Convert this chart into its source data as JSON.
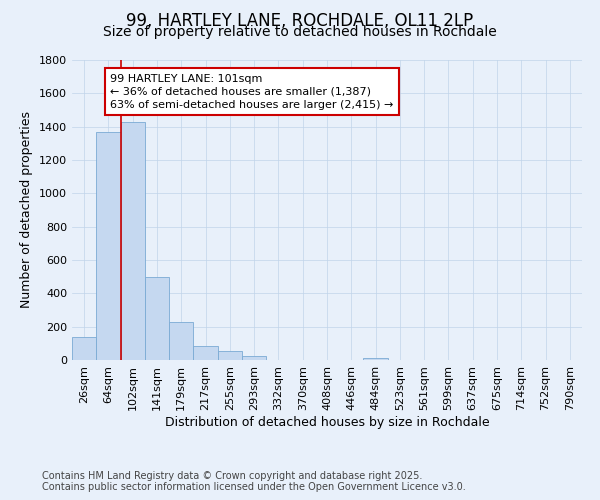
{
  "title_line1": "99, HARTLEY LANE, ROCHDALE, OL11 2LP",
  "title_line2": "Size of property relative to detached houses in Rochdale",
  "xlabel": "Distribution of detached houses by size in Rochdale",
  "ylabel": "Number of detached properties",
  "categories": [
    "26sqm",
    "64sqm",
    "102sqm",
    "141sqm",
    "179sqm",
    "217sqm",
    "255sqm",
    "293sqm",
    "332sqm",
    "370sqm",
    "408sqm",
    "446sqm",
    "484sqm",
    "523sqm",
    "561sqm",
    "599sqm",
    "637sqm",
    "675sqm",
    "714sqm",
    "752sqm",
    "790sqm"
  ],
  "values": [
    140,
    1370,
    1430,
    500,
    230,
    85,
    55,
    25,
    0,
    0,
    0,
    0,
    15,
    0,
    0,
    0,
    0,
    0,
    0,
    0,
    0
  ],
  "bar_color": "#c5d8f0",
  "bar_edge_color": "#7aaad4",
  "grid_color": "#c0d4ea",
  "background_color": "#e8f0fa",
  "vline_x": 1.5,
  "vline_color": "#cc0000",
  "annotation_text": "99 HARTLEY LANE: 101sqm\n← 36% of detached houses are smaller (1,387)\n63% of semi-detached houses are larger (2,415) →",
  "annotation_box_facecolor": "#ffffff",
  "annotation_box_edge": "#cc0000",
  "ylim": [
    0,
    1800
  ],
  "yticks": [
    0,
    200,
    400,
    600,
    800,
    1000,
    1200,
    1400,
    1600,
    1800
  ],
  "footer_text": "Contains HM Land Registry data © Crown copyright and database right 2025.\nContains public sector information licensed under the Open Government Licence v3.0.",
  "title_fontsize": 12,
  "subtitle_fontsize": 10,
  "axis_label_fontsize": 9,
  "tick_fontsize": 8,
  "annotation_fontsize": 8,
  "footer_fontsize": 7
}
